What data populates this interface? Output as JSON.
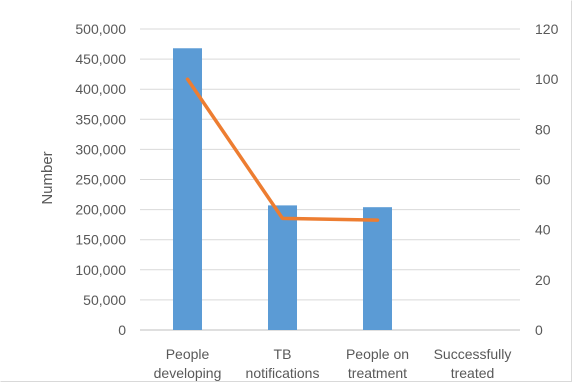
{
  "chart_data": {
    "type": "bar",
    "title": "",
    "categories": [
      [
        "People",
        "developing"
      ],
      [
        "TB",
        "notifications"
      ],
      [
        "People on",
        "treatment"
      ],
      [
        "Successfully",
        "treated"
      ]
    ],
    "ylabel": "Number",
    "y2label": "",
    "ylim": [
      0,
      500000
    ],
    "y2lim": [
      0,
      120
    ],
    "y_ticks": [
      "0",
      "50,000",
      "100,000",
      "150,000",
      "200,000",
      "250,000",
      "300,000",
      "350,000",
      "400,000",
      "450,000",
      "500,000"
    ],
    "y2_ticks": [
      "0",
      "20",
      "40",
      "60",
      "80",
      "100",
      "120"
    ],
    "grid": true,
    "legend": "none",
    "series": [
      {
        "type": "bar",
        "axis": "left",
        "color": "#5b9bd5",
        "values": [
          468000,
          207000,
          204000,
          null
        ]
      },
      {
        "type": "line",
        "axis": "right",
        "color": "#ed7d31",
        "values": [
          100,
          44.5,
          43.8,
          null
        ]
      }
    ]
  }
}
